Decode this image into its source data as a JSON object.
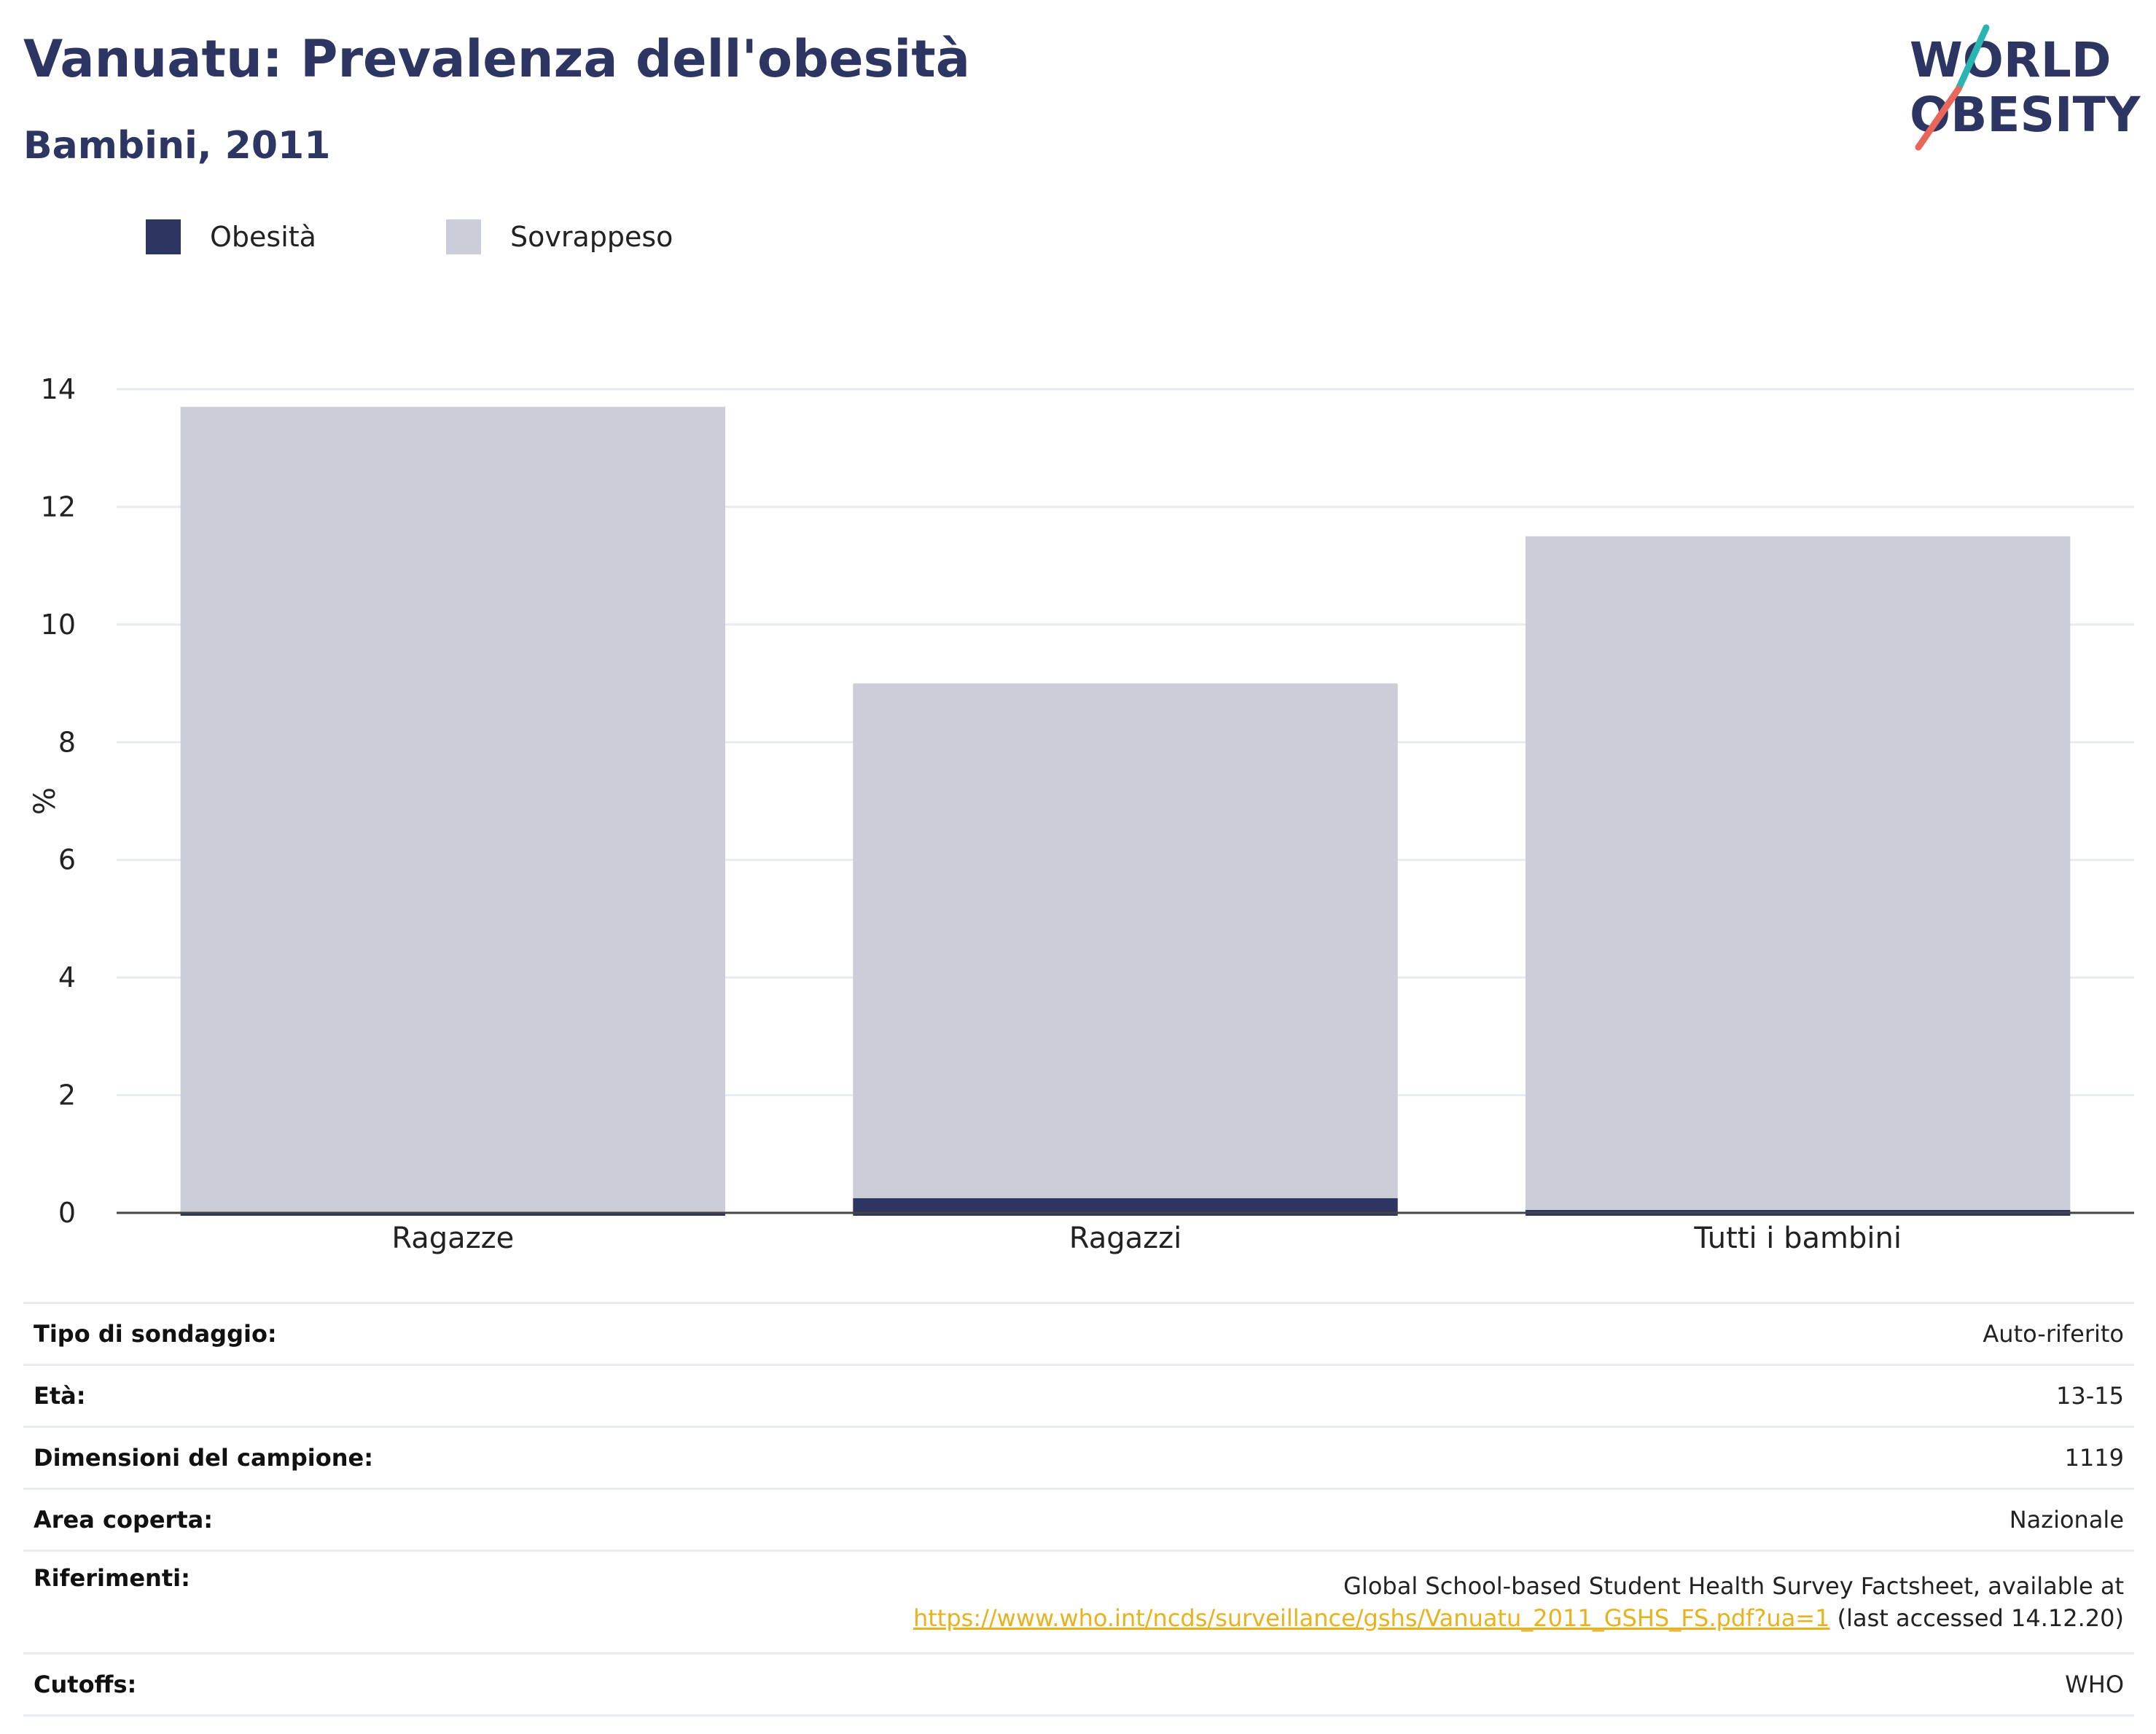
{
  "header": {
    "title": "Vanuatu: Prevalenza dell'obesità",
    "subtitle": "Bambini, 2011"
  },
  "logo": {
    "line1": "WORLD",
    "line2": "OBESITY",
    "colors": {
      "text": "#2d3563",
      "slash_top": "#2bb5b0",
      "slash_bottom": "#e8675a"
    }
  },
  "legend": [
    {
      "label": "Obesità",
      "color": "#2d3563"
    },
    {
      "label": "Sovrappeso",
      "color": "#cbcdd8"
    }
  ],
  "chart_data": {
    "type": "bar",
    "stacked": true,
    "categories": [
      "Ragazze",
      "Ragazzi",
      "Tutti i bambini"
    ],
    "series": [
      {
        "name": "Obesità",
        "values": [
          0,
          0.25,
          0.05
        ],
        "color": "#2d3563"
      },
      {
        "name": "Sovrappeso",
        "values": [
          13.7,
          8.75,
          11.45
        ],
        "color": "#cbcdd8"
      }
    ],
    "ylabel": "%",
    "ylim": [
      0,
      14
    ],
    "yticks": [
      0,
      2,
      4,
      6,
      8,
      10,
      12,
      14
    ],
    "grid": true,
    "legend_position": "top-left"
  },
  "info": {
    "rows": [
      {
        "key": "Tipo di sondaggio:",
        "value": "Auto-riferito"
      },
      {
        "key": "Età:",
        "value": "13-15"
      },
      {
        "key": "Dimensioni del campione:",
        "value": "1119"
      },
      {
        "key": "Area coperta:",
        "value": "Nazionale"
      }
    ],
    "ref": {
      "key": "Riferimenti:",
      "text1": "Global School-based Student Health Survey Factsheet, available at",
      "link": "https://www.who.int/ncds/surveillance/gshs/Vanuatu_2011_GSHS_FS.pdf?ua=1",
      "text2": " (last accessed 14.12.20)"
    },
    "cutoffs": {
      "key": "Cutoffs:",
      "value": "WHO"
    }
  }
}
